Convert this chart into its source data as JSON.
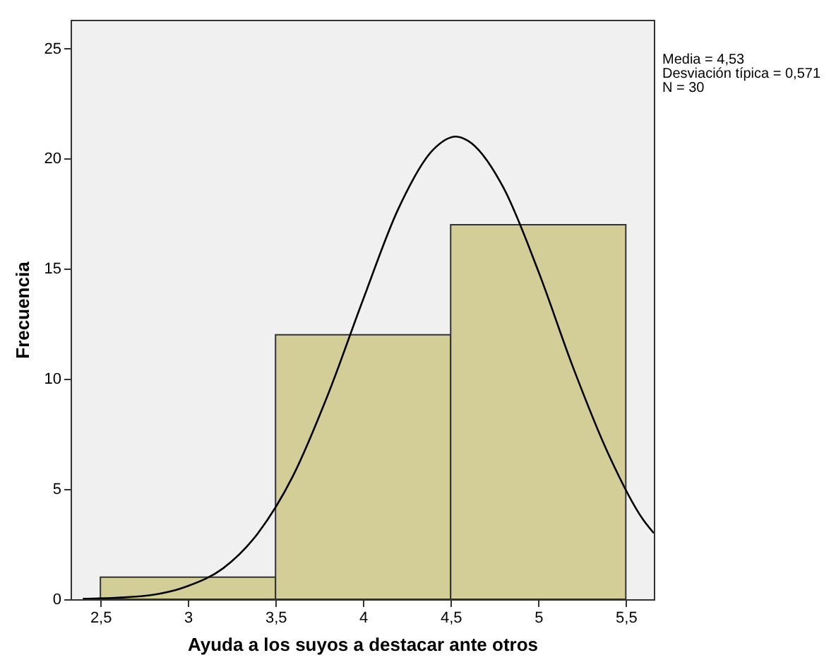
{
  "chart_data": {
    "type": "histogram",
    "xlabel": "Ayuda a los suyos a destacar ante otros",
    "ylabel": "Frecuencia",
    "bins": [
      2.5,
      3.5,
      4.5,
      5.5
    ],
    "values": [
      1,
      12,
      17
    ],
    "color": "#d3ce97",
    "series": [
      {
        "type": "line",
        "color": "#000000",
        "x": [
          2.4,
          2.6,
          2.8,
          3.0,
          3.2,
          3.4,
          3.6,
          3.8,
          4.0,
          4.2,
          4.4,
          4.53,
          4.6,
          4.8,
          5.0,
          5.2,
          5.4,
          5.6,
          5.66
        ],
        "values": [
          0.02,
          0.07,
          0.2,
          0.6,
          1.4,
          3.0,
          5.6,
          9.3,
          13.6,
          17.7,
          20.4,
          21.0,
          20.8,
          18.7,
          14.9,
          10.5,
          6.6,
          3.6,
          3.0
        ]
      }
    ],
    "xlim": [
      2.33,
      5.66
    ],
    "ylim": [
      0,
      26.3
    ],
    "xticks": [
      {
        "value": 2.5,
        "label": "2,5"
      },
      3,
      {
        "value": 3.5,
        "label": "3,5"
      },
      4,
      {
        "value": 4.5,
        "label": "4,5"
      },
      5,
      {
        "value": 5.5,
        "label": "5,5"
      }
    ],
    "yticks": [
      0,
      5,
      10,
      15,
      20,
      25
    ],
    "grid": false,
    "annotations": [
      "Media = 4,53",
      "Desviación típica = 0,571",
      "N = 30"
    ]
  }
}
